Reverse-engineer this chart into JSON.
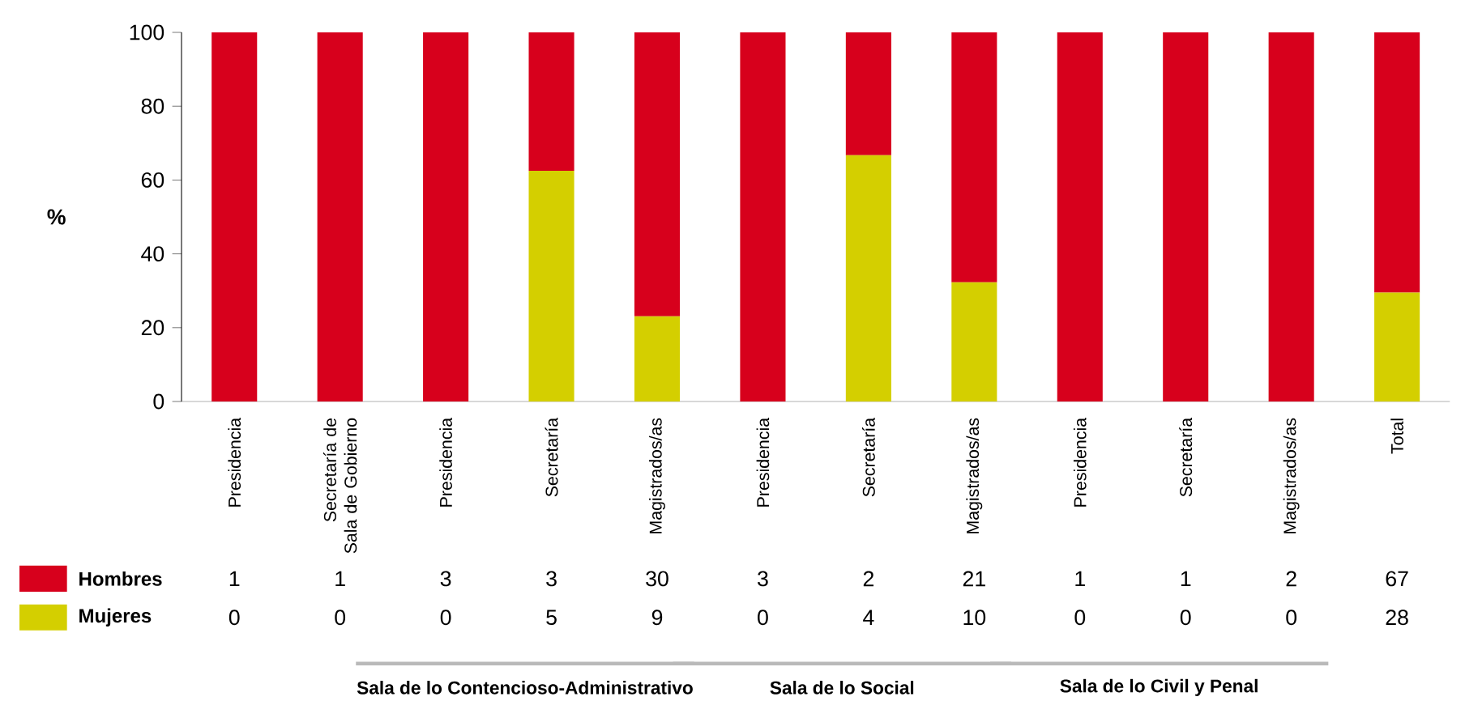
{
  "chart_data": {
    "type": "bar",
    "stacked": true,
    "ylabel": "%",
    "categories": [
      "Presidencia",
      "Secretaría de Sala de Gobierno",
      "Presidencia",
      "Secretaría",
      "Magistrados/as",
      "Presidencia",
      "Secretaría",
      "Magistrados/as",
      "Presidencia",
      "Secretaría",
      "Magistrados/as",
      "Total"
    ],
    "series": [
      {
        "name": "Mujeres",
        "color": "#d4cf00",
        "values": [
          0,
          0,
          0,
          62.5,
          23.1,
          0,
          66.7,
          32.3,
          0,
          0,
          0,
          29.5
        ]
      },
      {
        "name": "Hombres",
        "color": "#d7001c",
        "values": [
          100,
          100,
          100,
          37.5,
          76.9,
          100,
          33.3,
          67.7,
          100,
          100,
          100,
          70.5
        ]
      }
    ],
    "ylim": [
      0,
      100
    ],
    "yticks": [
      0,
      20,
      40,
      60,
      80,
      100
    ],
    "grid": false,
    "legend": "bottom left",
    "annotations": [
      "1",
      "1",
      "3",
      "3",
      "30",
      "3",
      "2",
      "21",
      "1",
      "1",
      "2",
      "67",
      "0",
      "0",
      "0",
      "5",
      "9",
      "0",
      "4",
      "10",
      "0",
      "0",
      "0",
      "28",
      "Sala de lo Contencioso-Administrativo",
      "Sala de lo Social",
      "Sala de lo Civil y Penal"
    ]
  }
}
